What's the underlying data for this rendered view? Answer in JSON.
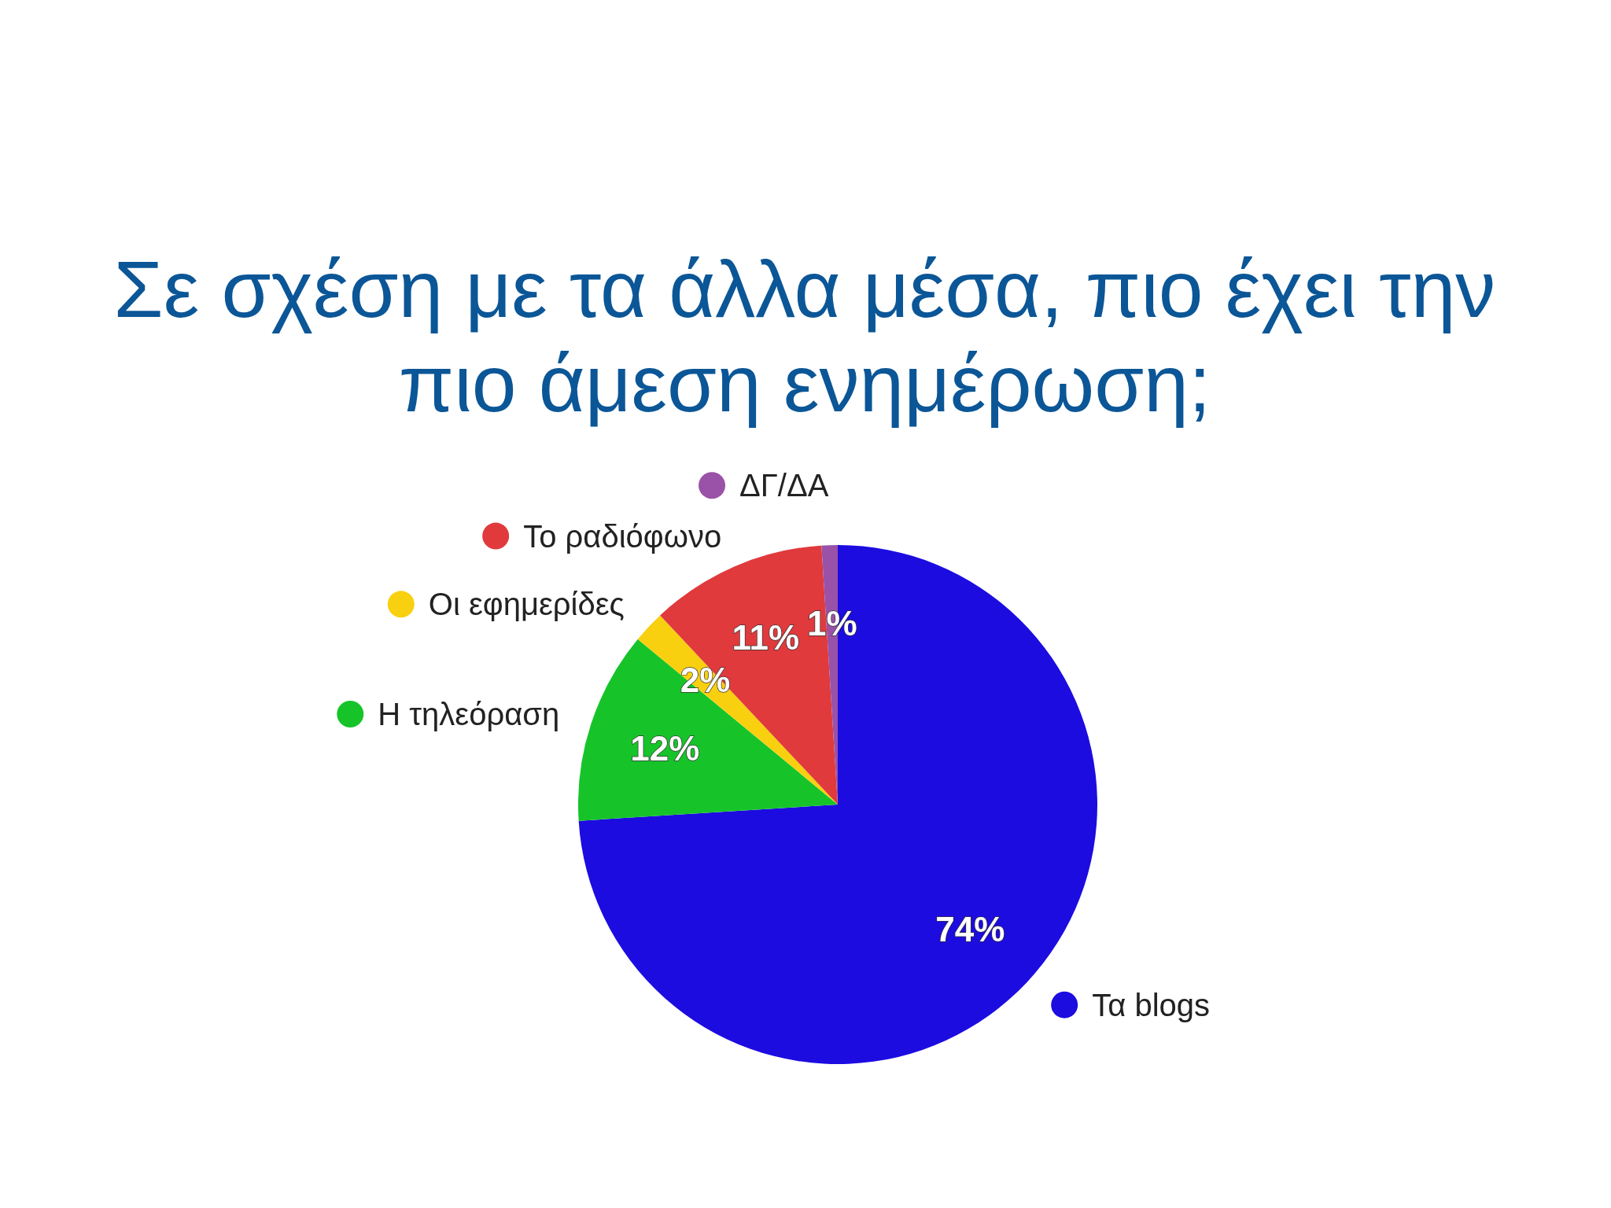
{
  "chart_data": {
    "type": "pie",
    "title": "Σε σχέση με τα άλλα μέσα, πιο έχει την πιο άμεση ενημέρωση;",
    "categories": [
      "Τα blogs",
      "Η τηλεόραση",
      "Οι εφημερίδες",
      "Το ραδιόφωνο",
      "ΔΓ/ΔΑ"
    ],
    "values": [
      74,
      12,
      2,
      11,
      1
    ],
    "colors": [
      "#1c0ce0",
      "#16c42a",
      "#f8d010",
      "#e03a3c",
      "#9a52a8"
    ],
    "value_labels": [
      "74%",
      "12%",
      "2%",
      "11%",
      "1%"
    ],
    "legend": "left"
  }
}
